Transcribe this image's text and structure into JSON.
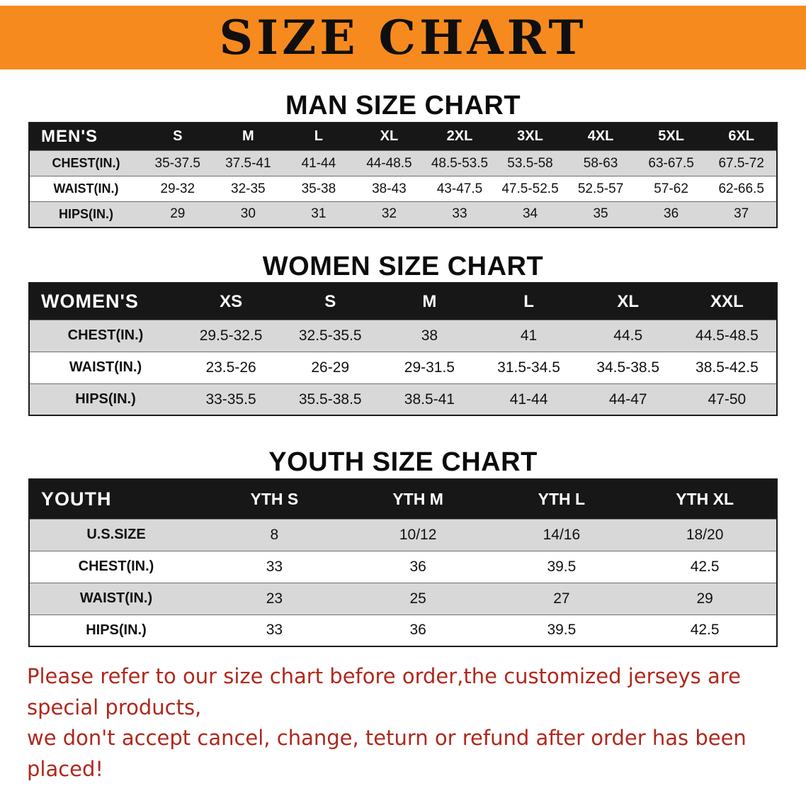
{
  "banner": {
    "title": "SIZE CHART"
  },
  "men": {
    "heading": "MAN SIZE CHART",
    "label": "MEN'S",
    "cols": [
      "S",
      "M",
      "L",
      "XL",
      "2XL",
      "3XL",
      "4XL",
      "5XL",
      "6XL"
    ],
    "rows": [
      {
        "label": "CHEST(IN.)",
        "values": [
          "35-37.5",
          "37.5-41",
          "41-44",
          "44-48.5",
          "48.5-53.5",
          "53.5-58",
          "58-63",
          "63-67.5",
          "67.5-72"
        ]
      },
      {
        "label": "WAIST(IN.)",
        "values": [
          "29-32",
          "32-35",
          "35-38",
          "38-43",
          "43-47.5",
          "47.5-52.5",
          "52.5-57",
          "57-62",
          "62-66.5"
        ]
      },
      {
        "label": "HIPS(IN.)",
        "values": [
          "29",
          "30",
          "31",
          "32",
          "33",
          "34",
          "35",
          "36",
          "37"
        ]
      }
    ]
  },
  "women": {
    "heading": "WOMEN SIZE CHART",
    "label": "WOMEN'S",
    "cols": [
      "XS",
      "S",
      "M",
      "L",
      "XL",
      "XXL"
    ],
    "rows": [
      {
        "label": "CHEST(IN.)",
        "values": [
          "29.5-32.5",
          "32.5-35.5",
          "38",
          "41",
          "44.5",
          "44.5-48.5"
        ]
      },
      {
        "label": "WAIST(IN.)",
        "values": [
          "23.5-26",
          "26-29",
          "29-31.5",
          "31.5-34.5",
          "34.5-38.5",
          "38.5-42.5"
        ]
      },
      {
        "label": "HIPS(IN.)",
        "values": [
          "33-35.5",
          "35.5-38.5",
          "38.5-41",
          "41-44",
          "44-47",
          "47-50"
        ]
      }
    ]
  },
  "youth": {
    "heading": "YOUTH SIZE CHART",
    "label": "YOUTH",
    "cols": [
      "YTH S",
      "YTH M",
      "YTH L",
      "YTH XL"
    ],
    "rows": [
      {
        "label": "U.S.SIZE",
        "values": [
          "8",
          "10/12",
          "14/16",
          "18/20"
        ]
      },
      {
        "label": "CHEST(IN.)",
        "values": [
          "33",
          "36",
          "39.5",
          "42.5"
        ]
      },
      {
        "label": "WAIST(IN.)",
        "values": [
          "23",
          "25",
          "27",
          "29"
        ]
      },
      {
        "label": "HIPS(IN.)",
        "values": [
          "33",
          "36",
          "39.5",
          "42.5"
        ]
      }
    ]
  },
  "disclaimer": {
    "line1": "Please refer to our size chart before order,the customized jerseys are special products,",
    "line2": "we don't accept cancel, change, teturn or refund after order has been placed!"
  },
  "colors": {
    "banner_bg": "#f68a1e",
    "table_header_bg": "#171717",
    "row_shade": "#d8d8d8",
    "disclaimer_red": "#b1271c"
  }
}
